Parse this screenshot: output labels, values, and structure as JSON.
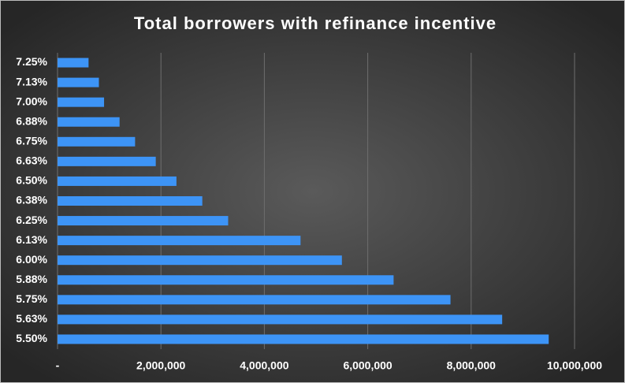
{
  "chart_data": {
    "type": "barh",
    "title": "Total borrowers with refinance incentive",
    "categories": [
      "7.25%",
      "7.13%",
      "7.00%",
      "6.88%",
      "6.75%",
      "6.63%",
      "6.50%",
      "6.38%",
      "6.25%",
      "6.13%",
      "6.00%",
      "5.88%",
      "5.75%",
      "5.63%",
      "5.50%"
    ],
    "values": [
      600000,
      800000,
      900000,
      1200000,
      1500000,
      1900000,
      2300000,
      2800000,
      3300000,
      4700000,
      5500000,
      6500000,
      7600000,
      8600000,
      9500000
    ],
    "color": "#3d94f6",
    "xlim": [
      0,
      10000000
    ],
    "xticks": [
      {
        "value": 0,
        "label": "-"
      },
      {
        "value": 2000000,
        "label": "2,000,000"
      },
      {
        "value": 4000000,
        "label": "4,000,000"
      },
      {
        "value": 6000000,
        "label": "6,000,000"
      },
      {
        "value": 8000000,
        "label": "8,000,000"
      },
      {
        "value": 10000000,
        "label": "10,000,000"
      }
    ],
    "grid": true
  }
}
